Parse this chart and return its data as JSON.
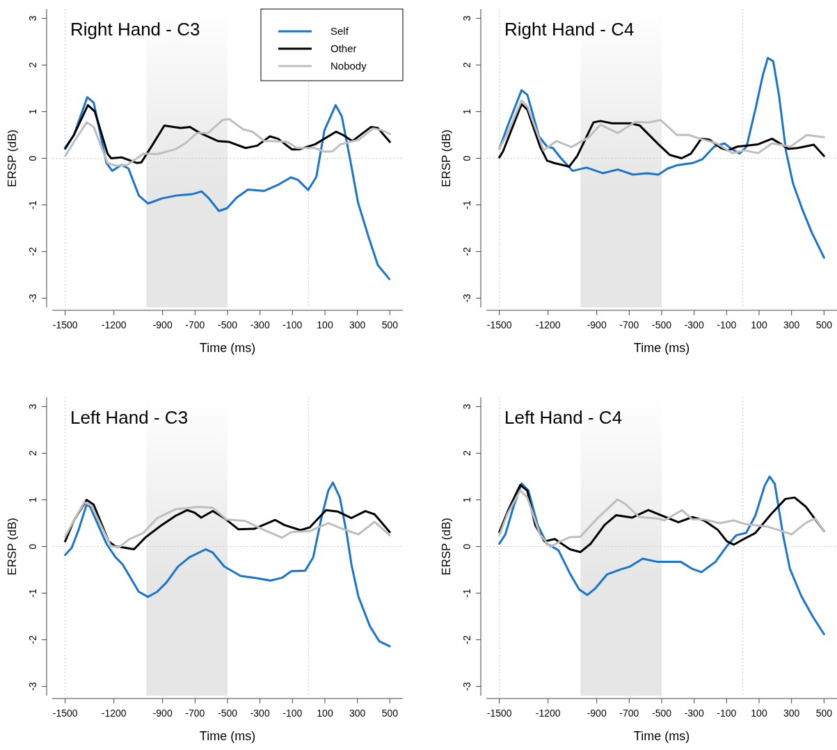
{
  "chart_data": [
    {
      "type": "line",
      "title": "Right Hand - C3",
      "xlabel": "Time (ms)",
      "ylabel": "ERSP (dB)",
      "xlim": [
        -1580,
        580
      ],
      "ylim": [
        -3.2,
        3.2
      ],
      "xticks": [
        -1500,
        -1200,
        -900,
        -700,
        -500,
        -300,
        -100,
        100,
        300,
        500
      ],
      "yticks": [
        -3,
        -2,
        -1,
        0,
        1,
        2,
        3
      ],
      "legend": "top right",
      "ref_lines": [
        {
          "axis": "x",
          "value": -1500,
          "color": "#c8c8c8",
          "line_style": "dotted"
        },
        {
          "axis": "x",
          "value": 0,
          "color": "#c8c8c8",
          "line_style": "dotted"
        },
        {
          "axis": "y",
          "value": 0,
          "color": "#c8c8c8",
          "line_style": "dotted"
        }
      ],
      "bands": [
        {
          "axis": "x",
          "from": -1000,
          "to": -500,
          "color": "#e6e6e6"
        }
      ],
      "series": [
        {
          "name": "Self",
          "color": "#1874cd",
          "x": [
            -1500,
            -1446,
            -1364,
            -1324,
            -1246,
            -1210,
            -1153,
            -1110,
            -1046,
            -989,
            -903,
            -817,
            -717,
            -660,
            -617,
            -553,
            -503,
            -446,
            -374,
            -274,
            -189,
            -110,
            -67,
            -3,
            47,
            97,
            166,
            204,
            254,
            304,
            369,
            426,
            497
          ],
          "values": [
            0.2,
            0.5,
            1.31,
            1.19,
            -0.1,
            -0.27,
            -0.14,
            -0.22,
            -0.8,
            -0.97,
            -0.86,
            -0.8,
            -0.77,
            -0.71,
            -0.85,
            -1.13,
            -1.07,
            -0.85,
            -0.67,
            -0.7,
            -0.57,
            -0.41,
            -0.46,
            -0.68,
            -0.4,
            0.6,
            1.14,
            0.9,
            0,
            -0.95,
            -1.69,
            -2.29,
            -2.59
          ]
        },
        {
          "name": "Other",
          "color": "#000000",
          "x": [
            -1500,
            -1446,
            -1360,
            -1317,
            -1239,
            -1217,
            -1153,
            -1060,
            -1031,
            -960,
            -889,
            -789,
            -731,
            -674,
            -560,
            -489,
            -389,
            -317,
            -239,
            -189,
            -103,
            -60,
            40,
            169,
            211,
            269,
            383,
            426,
            500
          ],
          "values": [
            0.22,
            0.5,
            1.14,
            1.0,
            0.1,
            0,
            0.02,
            -0.1,
            -0.09,
            0.3,
            0.7,
            0.65,
            0.67,
            0.55,
            0.37,
            0.35,
            0.22,
            0.27,
            0.47,
            0.42,
            0.19,
            0.19,
            0.3,
            0.57,
            0.5,
            0.37,
            0.67,
            0.65,
            0.35
          ]
        },
        {
          "name": "Nobody",
          "color": "#bebebe",
          "x": [
            -1500,
            -1446,
            -1367,
            -1324,
            -1239,
            -1189,
            -1117,
            -1017,
            -931,
            -817,
            -760,
            -689,
            -617,
            -531,
            -489,
            -403,
            -346,
            -274,
            -217,
            -131,
            -74,
            40,
            97,
            147,
            197,
            311,
            397,
            454,
            500
          ],
          "values": [
            0.05,
            0.35,
            0.77,
            0.67,
            -0.1,
            -0.16,
            -0.14,
            0.1,
            0.09,
            0.2,
            0.32,
            0.54,
            0.55,
            0.82,
            0.84,
            0.62,
            0.57,
            0.37,
            0.37,
            0.35,
            0.22,
            0.22,
            0.14,
            0.15,
            0.3,
            0.4,
            0.64,
            0.6,
            0.52
          ]
        }
      ]
    },
    {
      "type": "line",
      "title": "Right Hand - C4",
      "xlabel": "Time (ms)",
      "ylabel": "ERSP (dB)",
      "xlim": [
        -1580,
        580
      ],
      "ylim": [
        -3.2,
        3.2
      ],
      "xticks": [
        -1500,
        -1200,
        -900,
        -700,
        -500,
        -300,
        -100,
        100,
        300,
        500
      ],
      "yticks": [
        -3,
        -2,
        -1,
        0,
        1,
        2,
        3
      ],
      "ref_lines": [
        {
          "axis": "x",
          "value": -1500,
          "color": "#c8c8c8",
          "line_style": "dotted"
        },
        {
          "axis": "x",
          "value": 0,
          "color": "#c8c8c8",
          "line_style": "dotted"
        },
        {
          "axis": "y",
          "value": 0,
          "color": "#c8c8c8",
          "line_style": "dotted"
        }
      ],
      "bands": [
        {
          "axis": "x",
          "from": -1000,
          "to": -500,
          "color": "#e6e6e6"
        }
      ],
      "series": [
        {
          "color": "#1874cd",
          "x": [
            -1500,
            -1449,
            -1363,
            -1327,
            -1256,
            -1206,
            -1170,
            -1120,
            -1049,
            -963,
            -863,
            -770,
            -677,
            -591,
            -520,
            -463,
            -406,
            -306,
            -249,
            -177,
            -113,
            -77,
            -20,
            23,
            80,
            123,
            154,
            187,
            223,
            266,
            309,
            366,
            423,
            500
          ],
          "values": [
            0.2,
            0.69,
            1.46,
            1.36,
            0.47,
            0.25,
            0.22,
            0,
            -0.27,
            -0.2,
            -0.32,
            -0.24,
            -0.35,
            -0.32,
            -0.35,
            -0.22,
            -0.15,
            -0.1,
            -0.02,
            0.25,
            0.32,
            0.22,
            0.1,
            0.25,
            1.09,
            1.78,
            2.15,
            2.08,
            1.34,
            0.15,
            -0.54,
            -1.09,
            -1.58,
            -2.13
          ]
        },
        {
          "color": "#000000",
          "x": [
            -1500,
            -1477,
            -1363,
            -1327,
            -1249,
            -1206,
            -1163,
            -1070,
            -1020,
            -920,
            -877,
            -806,
            -691,
            -634,
            -520,
            -449,
            -377,
            -320,
            -256,
            -206,
            -134,
            -91,
            -34,
            94,
            180,
            237,
            280,
            337,
            437,
            500
          ],
          "values": [
            0.02,
            0.15,
            1.16,
            1.04,
            0.25,
            -0.05,
            -0.1,
            -0.18,
            0.05,
            0.77,
            0.8,
            0.75,
            0.75,
            0.7,
            0.3,
            0.07,
            0,
            0.1,
            0.42,
            0.4,
            0.22,
            0.17,
            0.25,
            0.3,
            0.42,
            0.3,
            0.2,
            0.22,
            0.29,
            0.05
          ]
        },
        {
          "color": "#bebebe",
          "x": [
            -1500,
            -1449,
            -1363,
            -1327,
            -1227,
            -1149,
            -1056,
            -949,
            -877,
            -770,
            -663,
            -577,
            -506,
            -406,
            -334,
            -263,
            -163,
            -63,
            9,
            94,
            180,
            294,
            394,
            500
          ],
          "values": [
            0.2,
            0.54,
            1.24,
            1.11,
            0.17,
            0.37,
            0.24,
            0.45,
            0.72,
            0.54,
            0.78,
            0.77,
            0.82,
            0.5,
            0.5,
            0.42,
            0.32,
            0.11,
            0.17,
            0.11,
            0.32,
            0.25,
            0.5,
            0.45
          ]
        }
      ]
    },
    {
      "type": "line",
      "title": "Left Hand - C3",
      "xlabel": "Time (ms)",
      "ylabel": "ERSP (dB)",
      "xlim": [
        -1580,
        580
      ],
      "ylim": [
        -3.2,
        3.2
      ],
      "xticks": [
        -1500,
        -1200,
        -900,
        -700,
        -500,
        -300,
        -100,
        100,
        300,
        500
      ],
      "yticks": [
        -3,
        -2,
        -1,
        0,
        1,
        2,
        3
      ],
      "ref_lines": [
        {
          "axis": "x",
          "value": -1500,
          "color": "#c8c8c8",
          "line_style": "dotted"
        },
        {
          "axis": "x",
          "value": 0,
          "color": "#c8c8c8",
          "line_style": "dotted"
        },
        {
          "axis": "y",
          "value": 0,
          "color": "#c8c8c8",
          "line_style": "dotted"
        }
      ],
      "bands": [
        {
          "axis": "x",
          "from": -1000,
          "to": -500,
          "color": "#e6e6e6"
        }
      ],
      "series": [
        {
          "color": "#1874cd",
          "x": [
            -1500,
            -1460,
            -1417,
            -1368,
            -1346,
            -1246,
            -1190,
            -1147,
            -1104,
            -1047,
            -990,
            -933,
            -876,
            -805,
            -734,
            -634,
            -591,
            -520,
            -420,
            -321,
            -235,
            -164,
            -107,
            -22,
            28,
            78,
            121,
            149,
            192,
            235,
            263,
            306,
            377,
            434,
            499
          ],
          "values": [
            -0.18,
            -0.03,
            0.36,
            0.9,
            0.85,
            0.06,
            -0.23,
            -0.38,
            -0.63,
            -0.97,
            -1.08,
            -0.97,
            -0.77,
            -0.43,
            -0.23,
            -0.06,
            -0.13,
            -0.43,
            -0.63,
            -0.68,
            -0.73,
            -0.67,
            -0.53,
            -0.52,
            -0.23,
            0.61,
            1.2,
            1.37,
            1.05,
            0.26,
            -0.38,
            -1.07,
            -1.71,
            -2.03,
            -2.14
          ]
        },
        {
          "color": "#000000",
          "x": [
            -1500,
            -1446,
            -1368,
            -1325,
            -1232,
            -1190,
            -1147,
            -1076,
            -1004,
            -905,
            -819,
            -748,
            -705,
            -662,
            -591,
            -520,
            -434,
            -335,
            -207,
            -150,
            -51,
            7,
            107,
            178,
            263,
            349,
            406,
            499
          ],
          "values": [
            0.11,
            0.56,
            1.0,
            0.9,
            0.11,
            0,
            -0.02,
            -0.06,
            0.2,
            0.46,
            0.66,
            0.78,
            0.73,
            0.62,
            0.76,
            0.61,
            0.37,
            0.38,
            0.57,
            0.46,
            0.35,
            0.41,
            0.78,
            0.75,
            0.61,
            0.76,
            0.69,
            0.31
          ]
        },
        {
          "color": "#bebebe",
          "x": [
            -1500,
            -1446,
            -1382,
            -1339,
            -1218,
            -1168,
            -1104,
            -1019,
            -933,
            -819,
            -677,
            -591,
            -506,
            -392,
            -278,
            -164,
            -107,
            7,
            121,
            206,
            306,
            406,
            499
          ],
          "values": [
            0.21,
            0.56,
            0.95,
            0.88,
            0.01,
            -0.02,
            0.16,
            0.29,
            0.61,
            0.8,
            0.85,
            0.83,
            0.58,
            0.55,
            0.36,
            0.19,
            0.31,
            0.33,
            0.5,
            0.38,
            0.26,
            0.53,
            0.24
          ]
        }
      ]
    },
    {
      "type": "line",
      "title": "Left Hand - C4",
      "xlabel": "Time (ms)",
      "ylabel": "ERSP (dB)",
      "xlim": [
        -1580,
        580
      ],
      "ylim": [
        -3.2,
        3.2
      ],
      "xticks": [
        -1500,
        -1200,
        -900,
        -700,
        -500,
        -300,
        -100,
        100,
        300,
        500
      ],
      "yticks": [
        -3,
        -2,
        -1,
        0,
        1,
        2,
        3
      ],
      "ref_lines": [
        {
          "axis": "x",
          "value": -1500,
          "color": "#c8c8c8",
          "line_style": "dotted"
        },
        {
          "axis": "x",
          "value": 0,
          "color": "#c8c8c8",
          "line_style": "dotted"
        },
        {
          "axis": "y",
          "value": 0,
          "color": "#c8c8c8",
          "line_style": "dotted"
        }
      ],
      "bands": [
        {
          "axis": "x",
          "from": -1000,
          "to": -500,
          "color": "#e6e6e6"
        }
      ],
      "series": [
        {
          "color": "#1874cd",
          "x": [
            -1500,
            -1463,
            -1413,
            -1363,
            -1321,
            -1264,
            -1207,
            -1136,
            -1065,
            -1008,
            -958,
            -909,
            -837,
            -752,
            -695,
            -617,
            -525,
            -382,
            -311,
            -255,
            -169,
            -98,
            -41,
            20,
            77,
            134,
            165,
            197,
            247,
            290,
            361,
            432,
            500
          ],
          "values": [
            0.06,
            0.26,
            0.85,
            1.35,
            1.2,
            0.46,
            0.06,
            -0.08,
            -0.58,
            -0.92,
            -1.04,
            -0.9,
            -0.6,
            -0.49,
            -0.43,
            -0.26,
            -0.33,
            -0.33,
            -0.48,
            -0.55,
            -0.33,
            0.01,
            0.24,
            0.29,
            0.66,
            1.3,
            1.5,
            1.34,
            0.26,
            -0.48,
            -1.07,
            -1.51,
            -1.88
          ]
        },
        {
          "color": "#000000",
          "x": [
            -1500,
            -1449,
            -1371,
            -1328,
            -1279,
            -1222,
            -1158,
            -1065,
            -1001,
            -937,
            -852,
            -781,
            -681,
            -582,
            -497,
            -397,
            -311,
            -240,
            -155,
            -98,
            -55,
            6,
            77,
            176,
            262,
            319,
            389,
            500
          ],
          "values": [
            0.31,
            0.75,
            1.32,
            1.2,
            0.46,
            0.11,
            0.16,
            -0.06,
            -0.12,
            0.06,
            0.46,
            0.67,
            0.62,
            0.78,
            0.66,
            0.52,
            0.63,
            0.56,
            0.36,
            0.11,
            0.04,
            0.16,
            0.29,
            0.7,
            1.02,
            1.05,
            0.85,
            0.33
          ]
        },
        {
          "color": "#bebebe",
          "x": [
            -1500,
            -1449,
            -1371,
            -1328,
            -1250,
            -1186,
            -1136,
            -1065,
            -1001,
            -894,
            -772,
            -723,
            -638,
            -525,
            -482,
            -375,
            -311,
            -240,
            -141,
            -55,
            15,
            144,
            215,
            300,
            389,
            446,
            500
          ],
          "values": [
            0.24,
            0.71,
            1.2,
            1.05,
            0.26,
            -0.01,
            0.09,
            0.2,
            0.21,
            0.61,
            1.01,
            0.91,
            0.63,
            0.6,
            0.56,
            0.78,
            0.58,
            0.58,
            0.5,
            0.56,
            0.48,
            0.43,
            0.36,
            0.26,
            0.51,
            0.6,
            0.33
          ]
        }
      ]
    }
  ]
}
